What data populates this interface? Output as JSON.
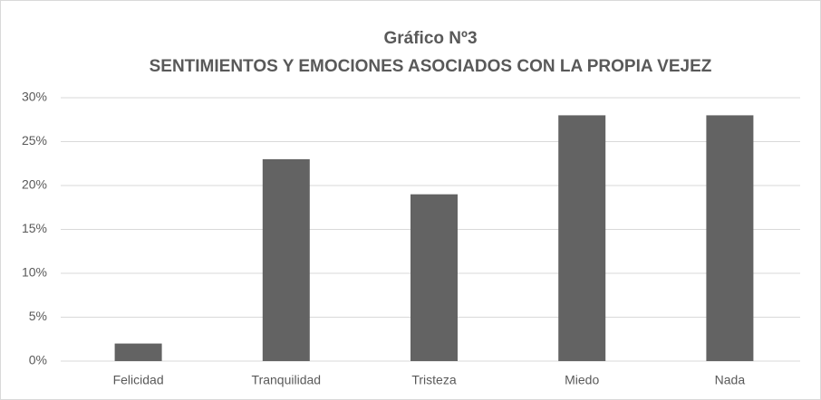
{
  "chart_data": {
    "type": "bar",
    "title": "Gráfico Nº3",
    "subtitle": "SENTIMIENTOS Y EMOCIONES ASOCIADOS CON LA PROPIA VEJEZ",
    "categories": [
      "Felicidad",
      "Tranquilidad",
      "Tristeza",
      "Miedo",
      "Nada"
    ],
    "values": [
      2,
      23,
      19,
      28,
      28
    ],
    "color": "#636363",
    "ylim": [
      0,
      30
    ],
    "yticks": [
      {
        "value": 0,
        "label": "0%"
      },
      {
        "value": 5,
        "label": "5%"
      },
      {
        "value": 10,
        "label": "10%"
      },
      {
        "value": 15,
        "label": "15%"
      },
      {
        "value": 20,
        "label": "20%"
      },
      {
        "value": 25,
        "label": "25%"
      },
      {
        "value": 30,
        "label": "30%"
      }
    ],
    "grid": true
  }
}
